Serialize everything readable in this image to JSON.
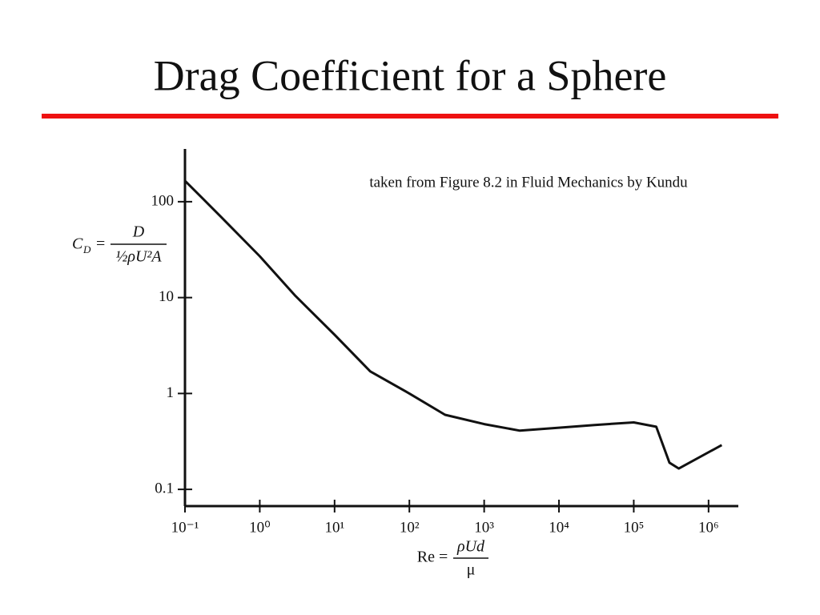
{
  "chart_data": {
    "type": "line",
    "title": "Drag Coefficient for a Sphere",
    "annotation": "taken from Figure 8.2 in Fluid Mechanics by Kundu",
    "ylabel": {
      "lhs": "C",
      "lhs_sub": "D",
      "equals": "=",
      "numerator": "D",
      "denominator": "½ρU²A"
    },
    "xlabel": {
      "lhs": "Re =",
      "numerator": "ρUd",
      "denominator": "μ"
    },
    "xscale": "log",
    "yscale": "log",
    "xlim": [
      0.1,
      2500000
    ],
    "ylim": [
      0.067,
      355
    ],
    "xticks": [
      {
        "value": 0.1,
        "label": "10⁻¹"
      },
      {
        "value": 1,
        "label": "10⁰"
      },
      {
        "value": 10,
        "label": "10¹"
      },
      {
        "value": 100,
        "label": "10²"
      },
      {
        "value": 1000,
        "label": "10³"
      },
      {
        "value": 10000,
        "label": "10⁴"
      },
      {
        "value": 100000,
        "label": "10⁵"
      },
      {
        "value": 1000000,
        "label": "10⁶"
      }
    ],
    "yticks": [
      0.1,
      1,
      10,
      100
    ],
    "x": [
      0.1,
      0.3,
      1,
      3,
      10,
      30,
      100,
      300,
      1000,
      3000,
      10000,
      30000,
      100000,
      200000,
      300000,
      400000,
      1500000
    ],
    "series": [
      {
        "color": "#111111",
        "values": [
          165,
          70,
          27,
          10.4,
          4.1,
          1.7,
          1.0,
          0.6,
          0.48,
          0.41,
          0.44,
          0.47,
          0.5,
          0.45,
          0.19,
          0.165,
          0.29
        ]
      }
    ]
  }
}
